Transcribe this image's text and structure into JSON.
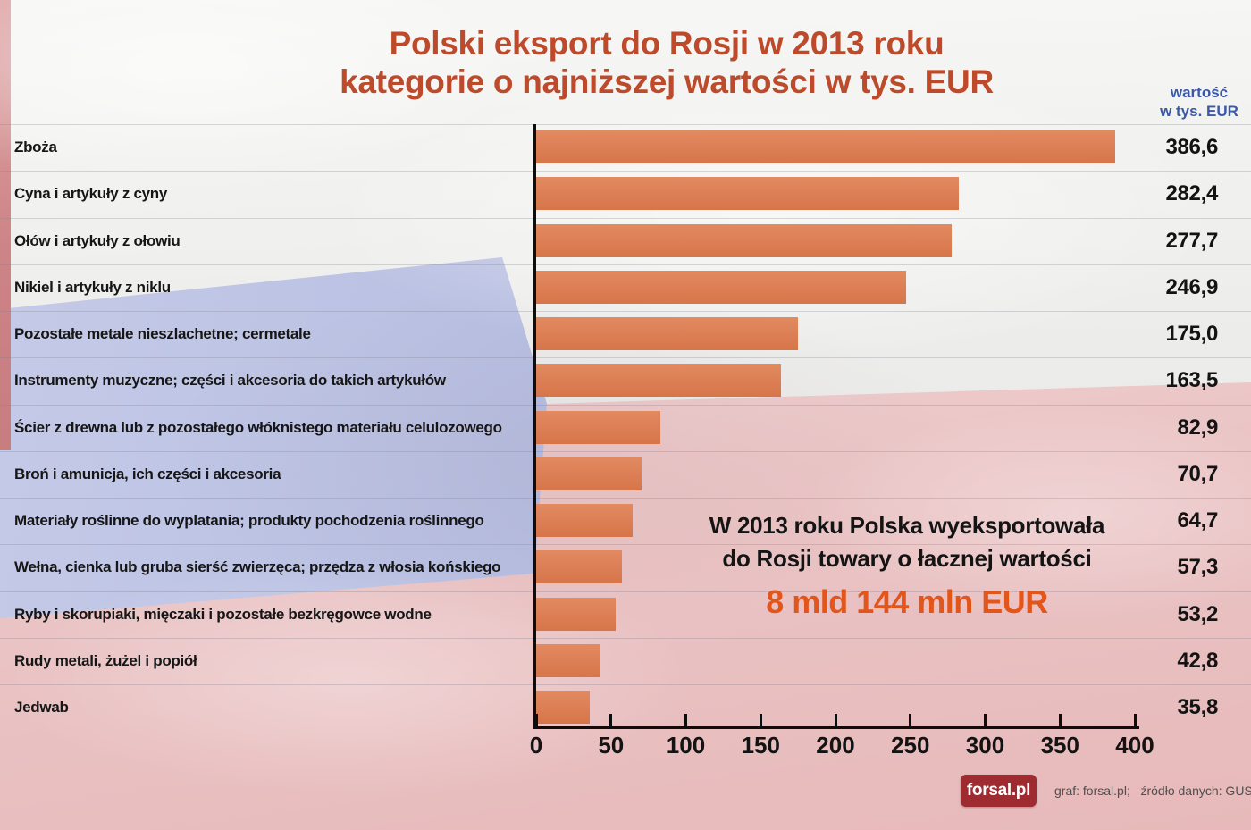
{
  "title": {
    "line1": "Polski eksport do Rosji w 2013 roku",
    "line2": "kategorie o najniższej wartości w tys. EUR"
  },
  "value_header": {
    "line1": "wartość",
    "line2": "w tys. EUR"
  },
  "chart_data": {
    "type": "bar",
    "orientation": "horizontal",
    "title": "Polski eksport do Rosji w 2013 roku — kategorie o najniższej wartości w tys. EUR",
    "unit": "tys. EUR",
    "xlim": [
      0,
      400
    ],
    "x_ticks": [
      "0",
      "50",
      "100",
      "150",
      "200",
      "250",
      "300",
      "350",
      "400"
    ],
    "grid": false,
    "legend": "none",
    "categories": [
      "Zboża",
      "Cyna i artykuły z cyny",
      "Ołów i artykuły z ołowiu",
      "Nikiel i artykuły z niklu",
      "Pozostałe metale nieszlachetne; cermetale",
      "Instrumenty muzyczne; części i akcesoria do takich artykułów",
      "Ścier z drewna lub z pozostałego włóknistego materiału celulozowego",
      "Broń i amunicja, ich części i akcesoria",
      "Materiały roślinne do wyplatania; produkty pochodzenia roślinnego",
      "Wełna, cienka lub gruba sierść zwierzęca; przędza z włosia końskiego",
      "Ryby i skorupiaki, mięczaki i pozostałe bezkręgowce wodne",
      "Rudy metali, żużel i popiół",
      "Jedwab"
    ],
    "values": [
      386.6,
      282.4,
      277.7,
      246.9,
      175.0,
      163.5,
      82.9,
      70.7,
      64.7,
      57.3,
      53.2,
      42.8,
      35.8
    ],
    "value_labels": [
      "386,6",
      "282,4",
      "277,7",
      "246,9",
      "175,0",
      "163,5",
      "82,9",
      "70,7",
      "64,7",
      "57,3",
      "53,2",
      "42,8",
      "35,8"
    ],
    "bar_color": "#DC7E55"
  },
  "annotation": {
    "line1": "W 2013 roku Polska wyeksportowała",
    "line2": "do Rosji towary o łacznej wartości",
    "highlight": "8 mld 144 mln EUR"
  },
  "footer": {
    "logo_text": "forsal.pl",
    "credit": "graf: forsal.pl;   źródło danych: GUS"
  },
  "colors": {
    "title": "#BC4A2B",
    "bar": "#DC7E55",
    "highlight": "#E2551B",
    "value_header_blue": "#3A57A8",
    "logo_background": "#9D2B30",
    "flag_blue": "#B7BEE1",
    "flag_pink": "#EFD2D2",
    "axis": "#0D0D0D"
  }
}
